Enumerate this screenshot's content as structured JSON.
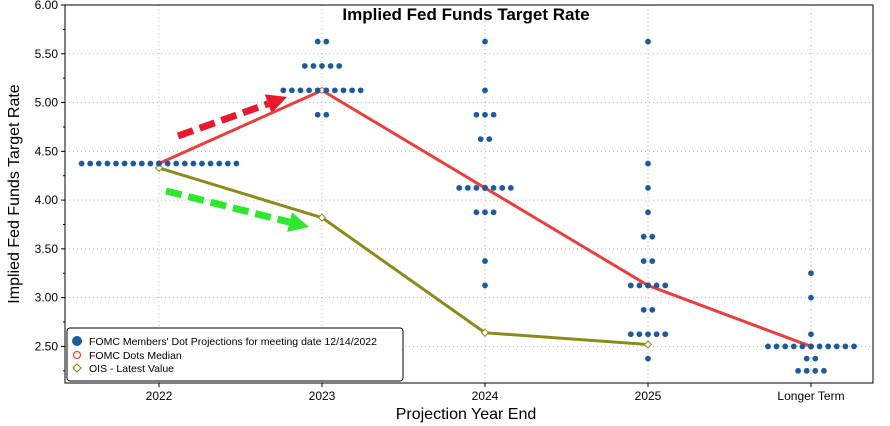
{
  "chart_data": {
    "type": "scatter",
    "title": "Implied Fed Funds Target Rate",
    "xlabel": "Projection Year End",
    "ylabel": "Implied Fed Funds Target Rate",
    "categories": [
      "2022",
      "2023",
      "2024",
      "2025",
      "Longer Term"
    ],
    "ylim": [
      2.125,
      6.0
    ],
    "yticks": [
      2.5,
      3.0,
      3.5,
      4.0,
      4.5,
      5.0,
      5.5,
      6.0
    ],
    "ytick_labels": [
      "2.50",
      "3.00",
      "3.50",
      "4.00",
      "4.50",
      "5.00",
      "5.50",
      "6.00"
    ],
    "grid": true,
    "legend_position": "bottom-left",
    "colors": {
      "dots": "#1f5a99",
      "median": "#e8403f",
      "ois": "#8b8b1a",
      "red_arrow": "#e8192c",
      "green_arrow": "#2ee82e"
    },
    "series": [
      {
        "name": "FOMC Members' Dot Projections for meeting date 12/14/2022",
        "kind": "dots",
        "points": [
          {
            "x": "2022",
            "y": 4.375,
            "count": 19
          },
          {
            "x": "2023",
            "y": 5.625,
            "count": 2
          },
          {
            "x": "2023",
            "y": 5.375,
            "count": 5
          },
          {
            "x": "2023",
            "y": 5.125,
            "count": 10
          },
          {
            "x": "2023",
            "y": 4.875,
            "count": 2
          },
          {
            "x": "2024",
            "y": 5.625,
            "count": 1
          },
          {
            "x": "2024",
            "y": 5.125,
            "count": 1
          },
          {
            "x": "2024",
            "y": 4.875,
            "count": 3
          },
          {
            "x": "2024",
            "y": 4.625,
            "count": 2
          },
          {
            "x": "2024",
            "y": 4.125,
            "count": 7
          },
          {
            "x": "2024",
            "y": 3.875,
            "count": 3
          },
          {
            "x": "2024",
            "y": 3.375,
            "count": 1
          },
          {
            "x": "2024",
            "y": 3.125,
            "count": 1
          },
          {
            "x": "2025",
            "y": 5.625,
            "count": 1
          },
          {
            "x": "2025",
            "y": 4.375,
            "count": 1
          },
          {
            "x": "2025",
            "y": 4.125,
            "count": 1
          },
          {
            "x": "2025",
            "y": 3.875,
            "count": 1
          },
          {
            "x": "2025",
            "y": 3.625,
            "count": 2
          },
          {
            "x": "2025",
            "y": 3.375,
            "count": 2
          },
          {
            "x": "2025",
            "y": 3.125,
            "count": 5
          },
          {
            "x": "2025",
            "y": 2.875,
            "count": 2
          },
          {
            "x": "2025",
            "y": 2.625,
            "count": 5
          },
          {
            "x": "2025",
            "y": 2.375,
            "count": 1
          },
          {
            "x": "Longer Term",
            "y": 3.25,
            "count": 1
          },
          {
            "x": "Longer Term",
            "y": 3.0,
            "count": 1
          },
          {
            "x": "Longer Term",
            "y": 2.625,
            "count": 1
          },
          {
            "x": "Longer Term",
            "y": 2.5,
            "count": 11
          },
          {
            "x": "Longer Term",
            "y": 2.375,
            "count": 2
          },
          {
            "x": "Longer Term",
            "y": 2.25,
            "count": 4
          }
        ]
      },
      {
        "name": "FOMC Dots Median",
        "kind": "line",
        "x": [
          "2022",
          "2023",
          "2024",
          "2025",
          "Longer Term"
        ],
        "y": [
          4.375,
          5.125,
          4.125,
          3.125,
          2.5
        ]
      },
      {
        "name": "OIS - Latest Value",
        "kind": "line",
        "x": [
          "2022",
          "2023",
          "2024",
          "2025"
        ],
        "y": [
          4.33,
          3.82,
          2.64,
          2.52
        ]
      }
    ]
  }
}
